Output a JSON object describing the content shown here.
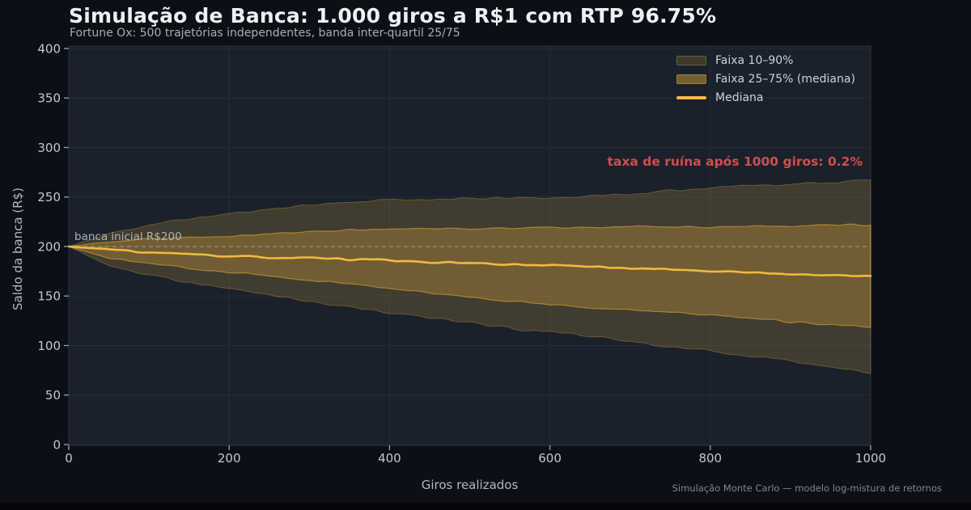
{
  "colors": {
    "figure_bg": "#0c1016",
    "plot_bg": "#1a212c",
    "grid": "#242c37",
    "spine": "#2b323e",
    "tick": "#9aa1a8",
    "tick_label": "#c3c8cd",
    "accent_gold": "#f1b53f",
    "median_line": "#f3b841",
    "baseline_dash": "#9aa1a8",
    "ruin_red": "#d04e4e"
  },
  "chart_data": {
    "type": "area",
    "title": "Simulação de Banca: 1.000 giros a R$1 com RTP 96.75%",
    "subtitle": "Fortune Ox: 500 trajetórias independentes, banda inter-quartil 25/75",
    "xlabel": "Giros realizados",
    "ylabel": "Saldo da banca (R$)",
    "caption": "Simulação Monte Carlo — modelo log-mistura de retornos",
    "xlim": [
      0,
      1000
    ],
    "ylim": [
      0,
      400
    ],
    "xticks": [
      0,
      200,
      400,
      600,
      800,
      1000
    ],
    "yticks": [
      0,
      50,
      100,
      150,
      200,
      250,
      300,
      350,
      400
    ],
    "grid": true,
    "legend_position": "upper right",
    "legend": [
      "Faixa 10–90%",
      "Faixa 25–75% (mediana)",
      "Mediana"
    ],
    "annotations": {
      "ruin_label": "taxa de ruína após 1000 giros: 0.2%",
      "baseline_label": "banca inicial R$200"
    },
    "baseline": {
      "value": 200
    },
    "x": [
      0,
      50,
      100,
      150,
      200,
      250,
      300,
      350,
      400,
      450,
      500,
      550,
      600,
      650,
      700,
      750,
      800,
      850,
      900,
      950,
      1000
    ],
    "series": [
      {
        "name": "p10",
        "values": [
          200,
          181,
          172,
          164,
          157,
          151,
          145,
          139,
          133,
          128,
          123,
          118,
          114,
          109,
          104,
          99,
          94,
          89,
          84,
          79,
          73
        ]
      },
      {
        "name": "p25",
        "values": [
          200,
          188,
          183,
          178,
          174,
          170,
          166,
          162,
          158,
          153,
          149,
          145,
          141,
          138,
          136,
          133,
          131,
          128,
          124,
          121,
          118
        ]
      },
      {
        "name": "Mediana",
        "values": [
          200,
          197,
          194,
          192,
          190,
          189,
          188,
          187,
          186,
          184,
          183,
          182,
          181,
          180,
          178,
          177,
          175,
          174,
          172,
          171,
          170
        ]
      },
      {
        "name": "p75",
        "values": [
          200,
          205,
          208,
          210,
          211,
          213,
          215,
          217,
          218,
          218,
          218,
          219,
          219,
          219,
          220,
          220,
          220,
          221,
          221,
          222,
          222
        ]
      },
      {
        "name": "p90",
        "values": [
          200,
          213,
          222,
          228,
          233,
          238,
          242,
          245,
          247,
          248,
          248,
          249,
          249,
          251,
          253,
          256,
          260,
          262,
          263,
          265,
          267
        ]
      }
    ],
    "bands": [
      {
        "label": "Faixa 10–90%",
        "lower": "p10",
        "upper": "p90"
      },
      {
        "label": "Faixa 25–75% (mediana)",
        "lower": "p25",
        "upper": "p75"
      }
    ]
  }
}
